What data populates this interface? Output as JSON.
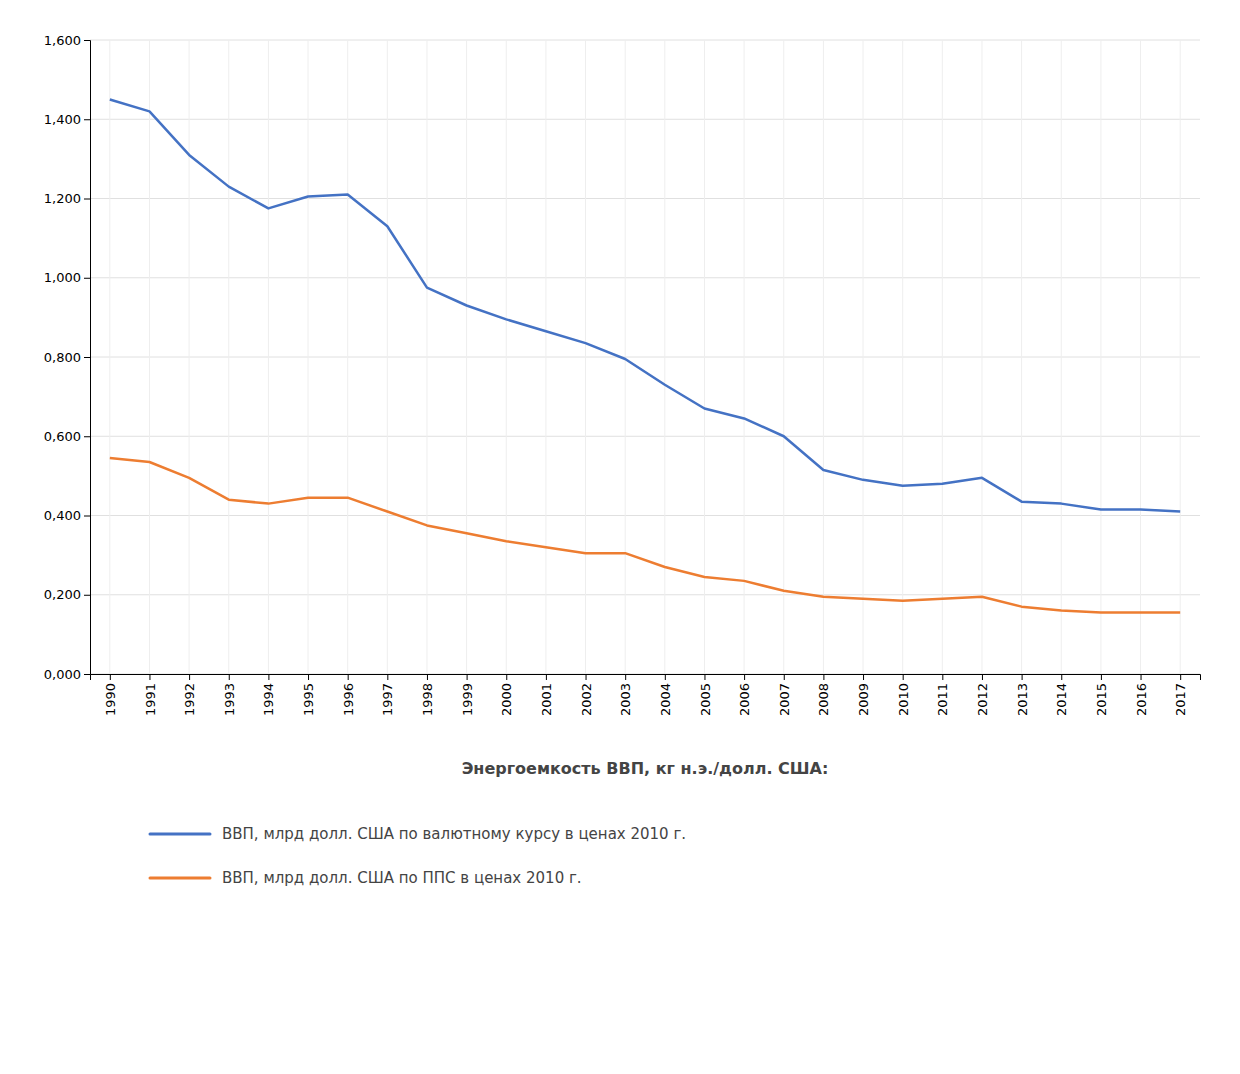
{
  "chart_data": {
    "type": "line",
    "x_label": "Энергоемкость ВВП, кг н.э./долл. США:",
    "x": [
      1990,
      1991,
      1992,
      1993,
      1994,
      1995,
      1996,
      1997,
      1998,
      1999,
      2000,
      2001,
      2002,
      2003,
      2004,
      2005,
      2006,
      2007,
      2008,
      2009,
      2010,
      2011,
      2012,
      2013,
      2014,
      2015,
      2016,
      2017
    ],
    "series": [
      {
        "name": "ВВП, млрд долл. США по валютному курсу в ценах 2010 г.",
        "color": "#4472C4",
        "values": [
          1.45,
          1.42,
          1.31,
          1.23,
          1.175,
          1.205,
          1.21,
          1.13,
          0.975,
          0.93,
          0.895,
          0.865,
          0.835,
          0.795,
          0.73,
          0.67,
          0.645,
          0.6,
          0.515,
          0.49,
          0.475,
          0.48,
          0.495,
          0.435,
          0.43,
          0.415,
          0.415,
          0.41
        ]
      },
      {
        "name": "ВВП, млрд долл. США по ППС в ценах 2010 г.",
        "color": "#ED7D31",
        "values": [
          0.545,
          0.535,
          0.495,
          0.44,
          0.43,
          0.445,
          0.445,
          0.41,
          0.375,
          0.355,
          0.335,
          0.32,
          0.305,
          0.305,
          0.27,
          0.245,
          0.235,
          0.21,
          0.195,
          0.19,
          0.185,
          0.19,
          0.195,
          0.17,
          0.16,
          0.155,
          0.155,
          0.155
        ]
      }
    ],
    "xlim": [
      1989.5,
      2017.5
    ],
    "xticks": [
      1990,
      1991,
      1992,
      1993,
      1994,
      1995,
      1996,
      1997,
      1998,
      1999,
      2000,
      2001,
      2002,
      2003,
      2004,
      2005,
      2006,
      2007,
      2008,
      2009,
      2010,
      2011,
      2012,
      2013,
      2014,
      2015,
      2016,
      2017
    ],
    "ylim": [
      0.0,
      1.6
    ],
    "yticks": [
      {
        "value": 0.0,
        "label": "0,000"
      },
      {
        "value": 0.2,
        "label": "0,200"
      },
      {
        "value": 0.4,
        "label": "0,400"
      },
      {
        "value": 0.6,
        "label": "0,600"
      },
      {
        "value": 0.8,
        "label": "0,800"
      },
      {
        "value": 1.0,
        "label": "1,000"
      },
      {
        "value": 1.2,
        "label": "1,200"
      },
      {
        "value": 1.4,
        "label": "1,400"
      },
      {
        "value": 1.6,
        "label": "1,600"
      }
    ],
    "grid": true,
    "legend": "bottom"
  }
}
